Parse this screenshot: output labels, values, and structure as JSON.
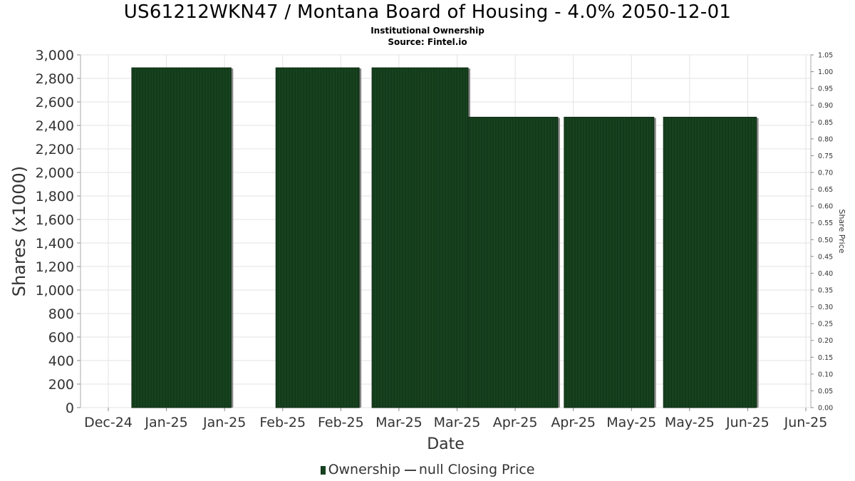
{
  "title": "US61212WKN47 / Montana Board of Housing - 4.0% 2050-12-01",
  "subtitle_1": "Institutional Ownership",
  "subtitle_2": "Source: Fintel.io",
  "legend": {
    "ownership_label": "Ownership",
    "price_label": "null Closing Price",
    "bar_color": "#17421f"
  },
  "chart_data": {
    "type": "bar",
    "xlabel": "Date",
    "ylabel": "Shares (x1000)",
    "y2label": "Share Price",
    "ylim": [
      0,
      3000
    ],
    "y2lim": [
      0,
      1.05
    ],
    "grid": true,
    "legend_position": "bottom",
    "x_tick_labels": [
      "Dec-24",
      "Jan-25",
      "Jan-25",
      "Feb-25",
      "Feb-25",
      "Mar-25",
      "Mar-25",
      "Apr-25",
      "Apr-25",
      "May-25",
      "May-25",
      "Jun-25",
      "Jun-25"
    ],
    "y_tick_labels": [
      "0",
      "200",
      "400",
      "600",
      "800",
      "1,000",
      "1,200",
      "1,400",
      "1,600",
      "1,800",
      "2,000",
      "2,200",
      "2,400",
      "2,600",
      "2,800",
      "3,000"
    ],
    "y2_tick_labels": [
      "0.00",
      "0.05",
      "0.10",
      "0.15",
      "0.20",
      "0.25",
      "0.30",
      "0.35",
      "0.40",
      "0.45",
      "0.50",
      "0.55",
      "0.60",
      "0.65",
      "0.70",
      "0.75",
      "0.80",
      "0.85",
      "0.90",
      "0.95",
      "1.00",
      "1.05"
    ],
    "series": [
      {
        "name": "Ownership",
        "bars": [
          {
            "start": "2024-12-31",
            "end": "2025-01-31",
            "value": 2890
          },
          {
            "start": "2025-02-14",
            "end": "2025-03-12",
            "value": 2890
          },
          {
            "start": "2025-03-16",
            "end": "2025-04-15",
            "value": 2890
          },
          {
            "start": "2025-04-15",
            "end": "2025-05-13",
            "value": 2470
          },
          {
            "start": "2025-05-15",
            "end": "2025-06-12",
            "value": 2470
          },
          {
            "start": "2025-06-15",
            "end": "2025-07-14",
            "value": 2470
          }
        ]
      }
    ]
  }
}
